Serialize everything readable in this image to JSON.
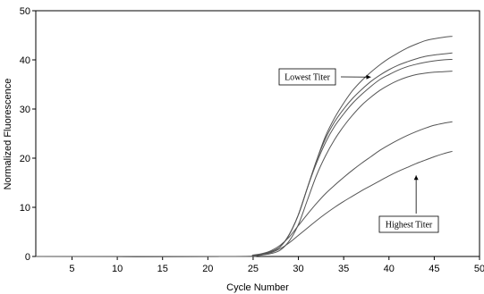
{
  "chart_data": {
    "type": "line",
    "xlabel": "Cycle Number",
    "ylabel": "Normalized Fluorescence",
    "xlim": [
      1,
      50
    ],
    "ylim": [
      0,
      50
    ],
    "xticks": [
      5,
      10,
      15,
      20,
      25,
      30,
      35,
      40,
      45,
      50
    ],
    "yticks": [
      0,
      10,
      20,
      30,
      40,
      50
    ],
    "grid": false,
    "line_color": "#555555",
    "series": [
      {
        "x": [
          1,
          23,
          25,
          26,
          27,
          28,
          29,
          30,
          31,
          32,
          33,
          34,
          35,
          36,
          37,
          38,
          39,
          40,
          41,
          42,
          43,
          44,
          45,
          46,
          47
        ],
        "y": [
          0,
          0,
          0.2,
          0.5,
          1.0,
          2.0,
          4.5,
          8.5,
          14.0,
          19.5,
          24.5,
          28.2,
          31.2,
          33.8,
          35.8,
          37.5,
          39.0,
          40.3,
          41.4,
          42.4,
          43.2,
          43.9,
          44.3,
          44.6,
          44.8
        ]
      },
      {
        "x": [
          1,
          23,
          25,
          26,
          27,
          28,
          29,
          30,
          31,
          32,
          33,
          34,
          35,
          36,
          37,
          38,
          39,
          40,
          41,
          42,
          43,
          44,
          45,
          46,
          47
        ],
        "y": [
          0,
          0,
          0.2,
          0.5,
          1.0,
          2.0,
          4.5,
          8.5,
          14.0,
          19.5,
          24.0,
          27.4,
          30.0,
          32.2,
          34.0,
          35.6,
          36.9,
          38.0,
          38.9,
          39.6,
          40.2,
          40.7,
          41.0,
          41.2,
          41.4
        ]
      },
      {
        "x": [
          1,
          23,
          25,
          26,
          27,
          28,
          29,
          30,
          31,
          32,
          33,
          34,
          35,
          36,
          37,
          38,
          39,
          40,
          41,
          42,
          43,
          44,
          45,
          46,
          47
        ],
        "y": [
          0,
          0,
          0.2,
          0.5,
          1.0,
          2.0,
          4.5,
          8.5,
          14.0,
          19.0,
          23.2,
          26.5,
          29.0,
          31.2,
          33.0,
          34.6,
          36.0,
          37.0,
          37.9,
          38.6,
          39.1,
          39.5,
          39.8,
          40.0,
          40.1
        ]
      },
      {
        "x": [
          1,
          23,
          25,
          26,
          27,
          28,
          29,
          30,
          31,
          32,
          33,
          34,
          35,
          36,
          37,
          38,
          39,
          40,
          41,
          42,
          43,
          44,
          45,
          46,
          47
        ],
        "y": [
          0,
          0,
          0.1,
          0.3,
          0.6,
          1.3,
          3.2,
          6.5,
          11.5,
          16.5,
          20.5,
          23.8,
          26.5,
          28.8,
          30.8,
          32.4,
          33.8,
          34.9,
          35.8,
          36.5,
          37.0,
          37.3,
          37.5,
          37.6,
          37.7
        ]
      },
      {
        "x": [
          1,
          23,
          25,
          26,
          27,
          28,
          29,
          30,
          31,
          32,
          33,
          34,
          35,
          36,
          37,
          38,
          39,
          40,
          41,
          42,
          43,
          44,
          45,
          46,
          47
        ],
        "y": [
          0,
          0,
          0.3,
          0.6,
          1.2,
          2.3,
          4.0,
          6.3,
          8.6,
          10.8,
          12.8,
          14.5,
          16.1,
          17.6,
          19.0,
          20.3,
          21.6,
          22.7,
          23.7,
          24.6,
          25.4,
          26.1,
          26.7,
          27.1,
          27.4
        ]
      },
      {
        "x": [
          1,
          23,
          25,
          26,
          27,
          28,
          29,
          30,
          31,
          32,
          33,
          34,
          35,
          36,
          37,
          38,
          39,
          40,
          41,
          42,
          43,
          44,
          45,
          46,
          47
        ],
        "y": [
          0,
          0,
          0.2,
          0.4,
          0.8,
          1.6,
          2.8,
          4.3,
          5.8,
          7.3,
          8.7,
          10.0,
          11.2,
          12.3,
          13.4,
          14.4,
          15.4,
          16.4,
          17.3,
          18.1,
          18.9,
          19.6,
          20.3,
          20.9,
          21.4
        ]
      }
    ],
    "annotations": [
      {
        "text": "Lowest Titer",
        "arrow_to": [
          38,
          36.5
        ]
      },
      {
        "text": "Highest Titer",
        "arrow_to": [
          43,
          16.5
        ]
      }
    ]
  }
}
